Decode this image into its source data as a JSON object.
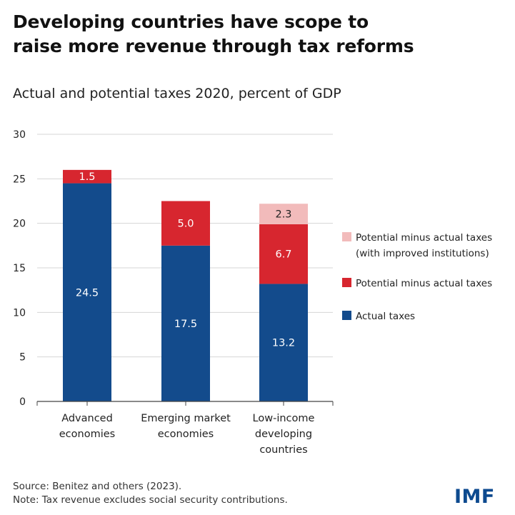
{
  "title": {
    "line1": "Developing countries have scope to",
    "line2": "raise more revenue through tax reforms"
  },
  "subtitle": "Actual and potential taxes 2020, percent of GDP",
  "source": "Source: Benitez and others (2023).",
  "note": "Note: Tax revenue excludes social security contributions.",
  "logo": "IMF",
  "colors": {
    "actual": "#134b8c",
    "potential": "#d7262f",
    "improved": "#f2bbbb",
    "grid": "#d6d6d6",
    "axis": "#444444"
  },
  "chart_data": {
    "type": "bar",
    "stacked": true,
    "categories": [
      [
        "Advanced",
        "economies"
      ],
      [
        "Emerging market",
        "economies"
      ],
      [
        "Low-income",
        "developing",
        "countries"
      ]
    ],
    "series": [
      {
        "name": "Actual taxes",
        "values": [
          24.5,
          17.5,
          13.2
        ],
        "color": "#134b8c"
      },
      {
        "name": "Potential minus actual taxes",
        "values": [
          1.5,
          5.0,
          6.7
        ],
        "color": "#d7262f"
      },
      {
        "name": "Potential minus actual taxes (with improved institutions)",
        "legend_lines": [
          "Potential minus actual taxes",
          "(with improved institutions)"
        ],
        "values": [
          0,
          0,
          2.3
        ],
        "color": "#f2bbbb"
      }
    ],
    "data_labels": [
      [
        "24.5",
        "17.5",
        "13.2"
      ],
      [
        "1.5",
        "5.0",
        "6.7"
      ],
      [
        null,
        null,
        "2.3"
      ]
    ],
    "y_ticks": [
      0,
      5,
      10,
      15,
      20,
      25,
      30
    ],
    "ylim": [
      0,
      30
    ],
    "grid": true,
    "legend_position": "right"
  }
}
